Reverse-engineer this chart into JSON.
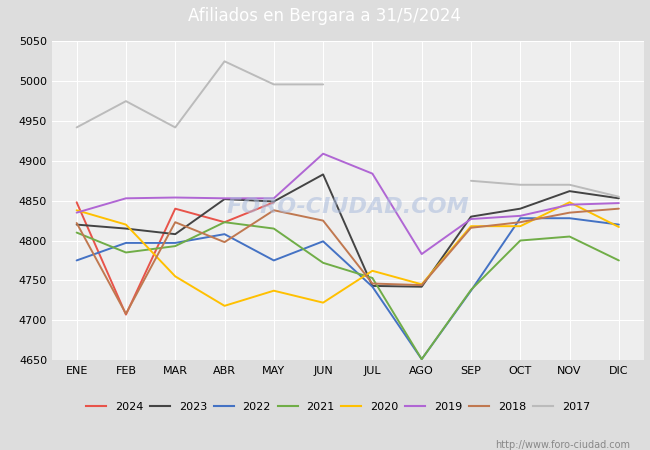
{
  "title": "Afiliados en Bergara a 31/5/2024",
  "ylim": [
    4650,
    5050
  ],
  "months": [
    "ENE",
    "FEB",
    "MAR",
    "ABR",
    "MAY",
    "JUN",
    "JUL",
    "AGO",
    "SEP",
    "OCT",
    "NOV",
    "DIC"
  ],
  "series": {
    "2024": {
      "color": "#e8534a",
      "data": [
        4848,
        4707,
        4840,
        4823,
        4848,
        null,
        null,
        null,
        null,
        null,
        null,
        null
      ]
    },
    "2023": {
      "color": "#444444",
      "data": [
        4820,
        4815,
        4808,
        4852,
        4849,
        4883,
        4743,
        4742,
        4830,
        4840,
        4862,
        4853
      ]
    },
    "2022": {
      "color": "#4472c4",
      "data": [
        4775,
        4797,
        4797,
        4808,
        4775,
        4799,
        4742,
        4651,
        4737,
        4828,
        4828,
        4820
      ]
    },
    "2021": {
      "color": "#70ad47",
      "data": [
        4810,
        4785,
        4793,
        4823,
        4815,
        4772,
        4753,
        4651,
        4738,
        4800,
        4805,
        4775
      ]
    },
    "2020": {
      "color": "#ffc000",
      "data": [
        4838,
        4820,
        4755,
        4718,
        4737,
        4722,
        4762,
        4745,
        4818,
        4818,
        4848,
        4817
      ]
    },
    "2019": {
      "color": "#b066d4",
      "data": [
        4835,
        4853,
        4854,
        4853,
        4853,
        4909,
        4884,
        4783,
        4827,
        4831,
        4845,
        4847
      ]
    },
    "2018": {
      "color": "#c07850",
      "data": [
        4822,
        4708,
        4823,
        4798,
        4838,
        4825,
        4746,
        4744,
        4816,
        4823,
        4835,
        4840
      ]
    },
    "2017": {
      "color": "#bbbbbb",
      "data": [
        4942,
        4975,
        4942,
        5025,
        4996,
        4996,
        null,
        null,
        4875,
        4870,
        4870,
        4855
      ]
    }
  },
  "title_bar_color": "#4472c4",
  "title_text_color": "#ffffff",
  "plot_bgcolor": "#eeeeee",
  "grid_color": "#ffffff",
  "fig_bgcolor": "#dddddd",
  "footer_url": "http://www.foro-ciudad.com",
  "watermark": "FORO-CIUDAD.COM",
  "legend_years": [
    "2024",
    "2023",
    "2022",
    "2021",
    "2020",
    "2019",
    "2018",
    "2017"
  ]
}
